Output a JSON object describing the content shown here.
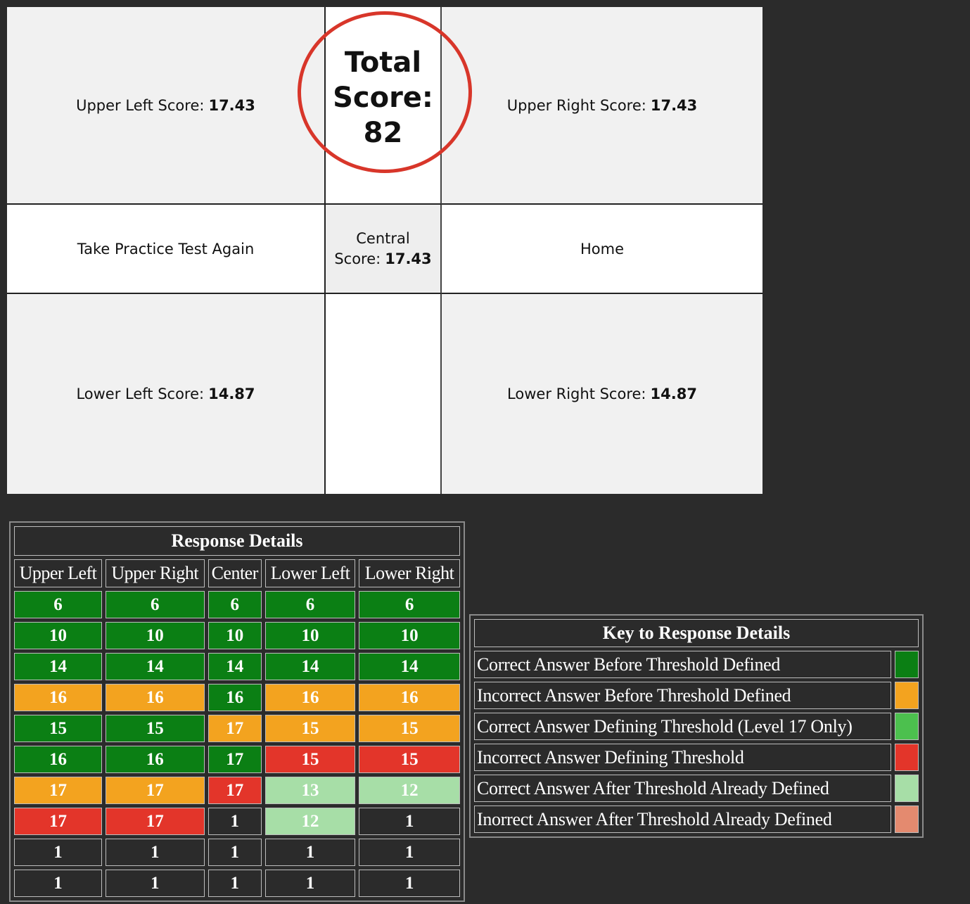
{
  "scores": {
    "upper_left_label": "Upper Left Score:",
    "upper_left_value": "17.43",
    "upper_right_label": "Upper Right Score:",
    "upper_right_value": "17.43",
    "lower_left_label": "Lower Left Score:",
    "lower_left_value": "14.87",
    "lower_right_label": "Lower Right Score:",
    "lower_right_value": "14.87",
    "central_label_line1": "Central",
    "central_label_line2": "Score:",
    "central_value": "17.43",
    "total_line1": "Total",
    "total_line2": "Score:",
    "total_value": "82"
  },
  "actions": {
    "take_again_label": "Take Practice Test Again",
    "home_label": "Home"
  },
  "response_details": {
    "title": "Response Details",
    "columns": [
      "Upper Left",
      "Upper Right",
      "Center",
      "Lower Left",
      "Lower Right"
    ],
    "rows": [
      {
        "values": [
          "6",
          "6",
          "6",
          "6",
          "6"
        ],
        "status": [
          "correct_before",
          "correct_before",
          "correct_before",
          "correct_before",
          "correct_before"
        ]
      },
      {
        "values": [
          "10",
          "10",
          "10",
          "10",
          "10"
        ],
        "status": [
          "correct_before",
          "correct_before",
          "correct_before",
          "correct_before",
          "correct_before"
        ]
      },
      {
        "values": [
          "14",
          "14",
          "14",
          "14",
          "14"
        ],
        "status": [
          "correct_before",
          "correct_before",
          "correct_before",
          "correct_before",
          "correct_before"
        ]
      },
      {
        "values": [
          "16",
          "16",
          "16",
          "16",
          "16"
        ],
        "status": [
          "incorrect_before",
          "incorrect_before",
          "correct_before",
          "incorrect_before",
          "incorrect_before"
        ]
      },
      {
        "values": [
          "15",
          "15",
          "17",
          "15",
          "15"
        ],
        "status": [
          "correct_before",
          "correct_before",
          "incorrect_before",
          "incorrect_before",
          "incorrect_before"
        ]
      },
      {
        "values": [
          "16",
          "16",
          "17",
          "15",
          "15"
        ],
        "status": [
          "correct_before",
          "correct_before",
          "correct_before",
          "incorrect_defining",
          "incorrect_defining"
        ]
      },
      {
        "values": [
          "17",
          "17",
          "17",
          "13",
          "12"
        ],
        "status": [
          "incorrect_before",
          "incorrect_before",
          "incorrect_defining",
          "correct_after",
          "correct_after"
        ]
      },
      {
        "values": [
          "17",
          "17",
          "1",
          "12",
          "1"
        ],
        "status": [
          "incorrect_defining",
          "incorrect_defining",
          "none",
          "correct_after",
          "none"
        ]
      },
      {
        "values": [
          "1",
          "1",
          "1",
          "1",
          "1"
        ],
        "status": [
          "none",
          "none",
          "none",
          "none",
          "none"
        ]
      },
      {
        "values": [
          "1",
          "1",
          "1",
          "1",
          "1"
        ],
        "status": [
          "none",
          "none",
          "none",
          "none",
          "none"
        ]
      }
    ]
  },
  "key": {
    "title": "Key to Response Details",
    "items": [
      {
        "label": "Correct Answer Before Threshold Defined",
        "color": "#0b7f14"
      },
      {
        "label": "Incorrect Answer Before Threshold Defined",
        "color": "#f3a31f"
      },
      {
        "label": "Correct Answer Defining Threshold (Level 17 Only)",
        "color": "#4cc04e"
      },
      {
        "label": "Incorrect Answer Defining Threshold",
        "color": "#e3352a"
      },
      {
        "label": "Correct Answer After Threshold Already Defined",
        "color": "#a7dea7"
      },
      {
        "label": "Inorrect Answer After Threshold Already Defined",
        "color": "#e48a6f"
      }
    ]
  },
  "colors": {
    "background": "#2b2b2b",
    "total_circle": "#d8362a"
  }
}
